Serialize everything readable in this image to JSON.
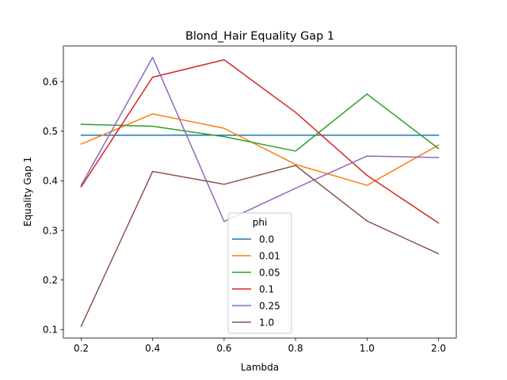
{
  "chart_data": {
    "type": "line",
    "title": "Blond_Hair Equality Gap 1",
    "xlabel": "Lambda",
    "ylabel": "Equality Gap 1",
    "categories": [
      "0.2",
      "0.4",
      "0.6",
      "0.8",
      "1.0",
      "2.0"
    ],
    "ylim": [
      0.083,
      0.672
    ],
    "yticks": [
      "0.1",
      "0.2",
      "0.3",
      "0.4",
      "0.5",
      "0.6"
    ],
    "grid": false,
    "legend": {
      "title": "phi",
      "placement": "lower center"
    },
    "series": [
      {
        "name": "0.0",
        "color": "#1f77b4",
        "values": [
          0.492,
          0.492,
          0.492,
          0.492,
          0.492,
          0.492
        ]
      },
      {
        "name": "0.01",
        "color": "#ff7f0e",
        "values": [
          0.474,
          0.535,
          0.506,
          0.433,
          0.391,
          0.472
        ]
      },
      {
        "name": "0.05",
        "color": "#2ca02c",
        "values": [
          0.514,
          0.51,
          0.489,
          0.46,
          0.575,
          0.465
        ]
      },
      {
        "name": "0.1",
        "color": "#d62728",
        "values": [
          0.388,
          0.609,
          0.644,
          0.538,
          0.411,
          0.315
        ]
      },
      {
        "name": "0.25",
        "color": "#9467bd",
        "values": [
          0.391,
          0.649,
          0.318,
          0.385,
          0.45,
          0.447
        ]
      },
      {
        "name": "1.0",
        "color": "#8c564b",
        "values": [
          0.107,
          0.419,
          0.393,
          0.431,
          0.319,
          0.253
        ]
      }
    ]
  }
}
